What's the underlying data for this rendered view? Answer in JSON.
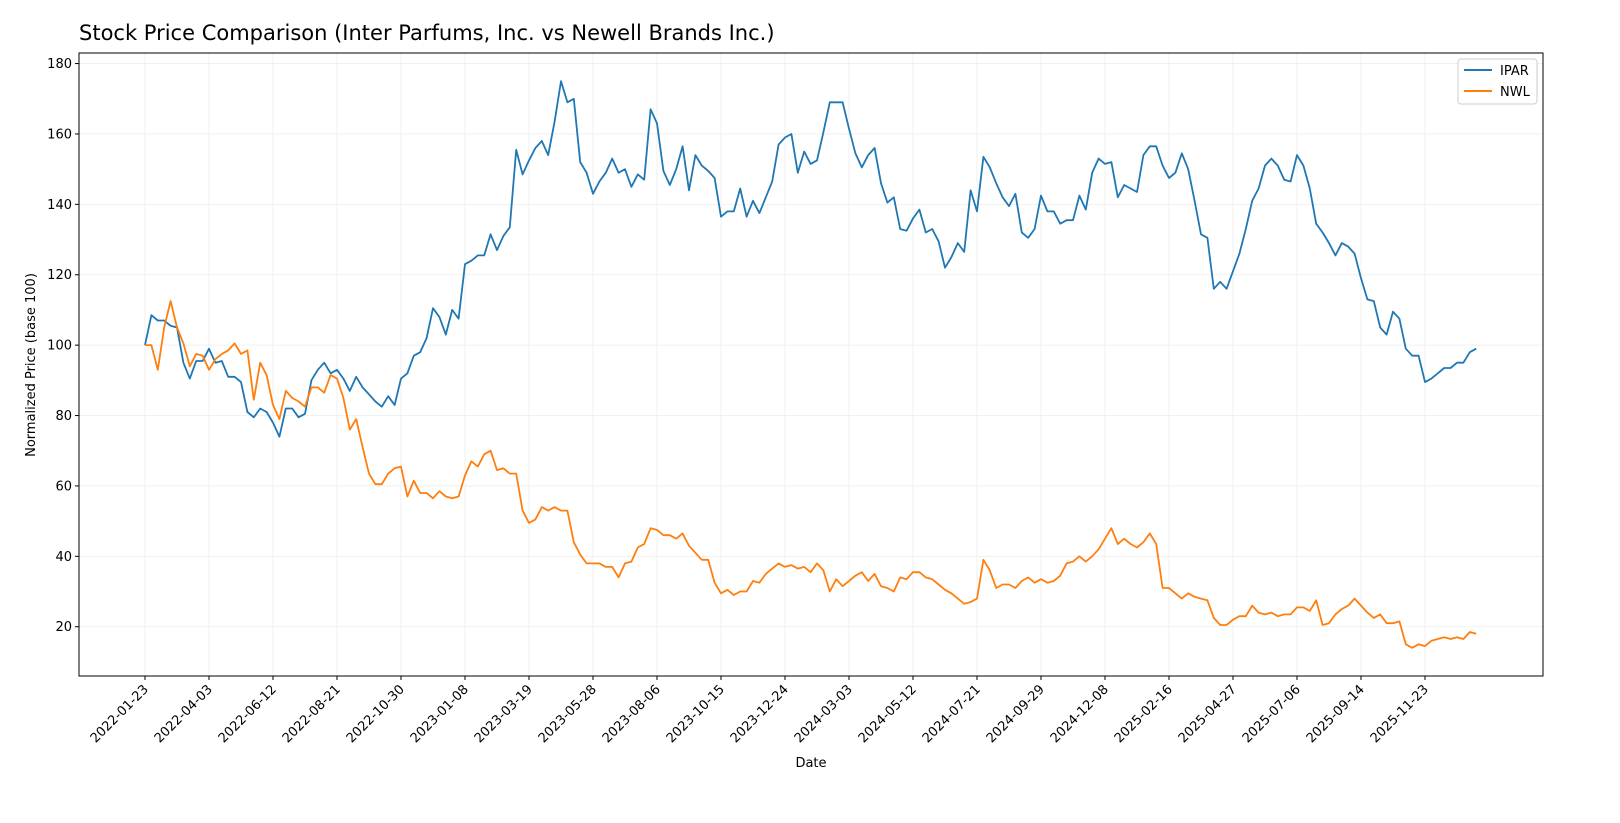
{
  "chart_data": {
    "type": "line",
    "title": "Stock Price Comparison (Inter Parfums, Inc. vs Newell Brands Inc.)",
    "xlabel": "Date",
    "ylabel": "Normalized Price (base 100)",
    "x_frequency": "weekly",
    "x_ticks": [
      "2022-01-23",
      "2022-04-03",
      "2022-06-12",
      "2022-08-21",
      "2022-10-30",
      "2023-01-08",
      "2023-03-19",
      "2023-05-28",
      "2023-08-06",
      "2023-10-15",
      "2023-12-24",
      "2024-03-03",
      "2024-05-12",
      "2024-07-21",
      "2024-09-29",
      "2024-12-08",
      "2025-02-16",
      "2025-04-27",
      "2025-07-06",
      "2025-09-14",
      "2025-11-23"
    ],
    "y_ticks": [
      20,
      40,
      60,
      80,
      100,
      120,
      140,
      160,
      180
    ],
    "ylim": [
      6,
      183
    ],
    "grid": true,
    "legend_position": "top-right",
    "series": [
      {
        "name": "IPAR",
        "color": "#1f77b4",
        "values": [
          100,
          108.5,
          107,
          107,
          105.5,
          105,
          95,
          90.5,
          95.5,
          95.5,
          99,
          95,
          95.5,
          91,
          91,
          89.5,
          81,
          79.5,
          82,
          81,
          78,
          74,
          82,
          82,
          79.5,
          80.5,
          90,
          93,
          95,
          92,
          93,
          90.5,
          87,
          91,
          88,
          86,
          84,
          82.5,
          85.5,
          83,
          90.5,
          92,
          97,
          98,
          102,
          110.5,
          108,
          103,
          110,
          107.5,
          123,
          124,
          125.5,
          125.5,
          131.5,
          127,
          131,
          133.5,
          155.5,
          148.5,
          152.5,
          156,
          158,
          154,
          163.5,
          175,
          169,
          170,
          152,
          149,
          143,
          146.5,
          149,
          153,
          149,
          150,
          145,
          148.5,
          147,
          167,
          163,
          149.5,
          145.5,
          150,
          156.5,
          144,
          154,
          151,
          149.5,
          147.5,
          136.5,
          138,
          138,
          144.5,
          136.5,
          141,
          137.5,
          142,
          146.5,
          157,
          159,
          160,
          149,
          155,
          151.5,
          152.5,
          160.5,
          169,
          169,
          169,
          161.5,
          154.5,
          150.5,
          154,
          156,
          146,
          140.5,
          142,
          133,
          132.5,
          136,
          138.5,
          132,
          133,
          129.5,
          122,
          125,
          129,
          126.5,
          144,
          138,
          153.5,
          150.5,
          146,
          142,
          139.5,
          143,
          132,
          130.5,
          133,
          142.5,
          138,
          138,
          134.5,
          135.5,
          135.5,
          142.5,
          138.5,
          149,
          153,
          151.5,
          152,
          142,
          145.5,
          144.5,
          143.5,
          154,
          156.5,
          156.5,
          151,
          147.5,
          149,
          154.5,
          150,
          141,
          131.5,
          130.5,
          116,
          118,
          116,
          121,
          126,
          133,
          141,
          144.5,
          151,
          153,
          151,
          147,
          146.5,
          154,
          151,
          144.5,
          134.5,
          132,
          129,
          125.5,
          129,
          128,
          126,
          119,
          113,
          112.5,
          105,
          103,
          109.5,
          107.5,
          99,
          97,
          97,
          89.5,
          90.5,
          92,
          93.5,
          93.5,
          95,
          95,
          98,
          99
        ]
      },
      {
        "name": "NWL",
        "color": "#ff7f0e",
        "values": [
          100,
          100,
          93,
          105,
          112.5,
          105,
          100.5,
          94,
          97.5,
          97,
          93,
          96,
          97.5,
          98.5,
          100.5,
          97.5,
          98.5,
          84.5,
          95,
          91.5,
          83,
          79,
          87,
          85,
          84,
          82.5,
          88,
          88,
          86.5,
          91.5,
          90.5,
          85,
          76,
          79,
          71,
          63.5,
          60.5,
          60.5,
          63.5,
          65,
          65.5,
          57,
          61.5,
          58,
          58,
          56.5,
          58.5,
          57,
          56.5,
          57,
          63,
          67,
          65.5,
          69,
          70,
          64.5,
          65,
          63.5,
          63.5,
          53,
          49.5,
          50.5,
          54,
          53,
          54,
          53,
          53,
          44,
          40.5,
          38,
          38,
          38,
          37,
          37,
          34,
          38,
          38.5,
          42.5,
          43.5,
          48,
          47.5,
          46,
          46,
          45,
          46.5,
          43,
          41,
          39,
          39,
          32.5,
          29.5,
          30.5,
          29,
          30,
          30,
          33,
          32.5,
          35,
          36.5,
          38,
          37,
          37.5,
          36.5,
          37,
          35.5,
          38,
          36,
          30,
          33.5,
          31.5,
          33,
          34.5,
          35.5,
          33,
          35,
          31.5,
          31,
          30,
          34,
          33.5,
          35.5,
          35.5,
          34,
          33.5,
          32,
          30.5,
          29.5,
          28,
          26.5,
          27,
          28,
          39,
          36,
          31,
          32,
          32,
          31,
          33,
          34,
          32.5,
          33.5,
          32.5,
          33,
          34.5,
          38,
          38.5,
          40,
          38.5,
          40,
          42,
          45,
          48,
          43.5,
          45,
          43.5,
          42.5,
          44,
          46.5,
          43.5,
          31,
          31,
          29.5,
          28,
          29.5,
          28.5,
          28,
          27.5,
          22.5,
          20.5,
          20.5,
          22,
          23,
          23,
          26,
          24,
          23.5,
          24,
          23,
          23.5,
          23.5,
          25.5,
          25.5,
          24.5,
          27.5,
          20.5,
          21,
          23.5,
          25,
          26,
          28,
          26,
          24,
          22.5,
          23.5,
          21,
          21,
          21.5,
          15,
          14,
          15,
          14.5,
          16,
          16.5,
          17,
          16.5,
          17,
          16.5,
          18.5,
          18
        ]
      }
    ]
  }
}
